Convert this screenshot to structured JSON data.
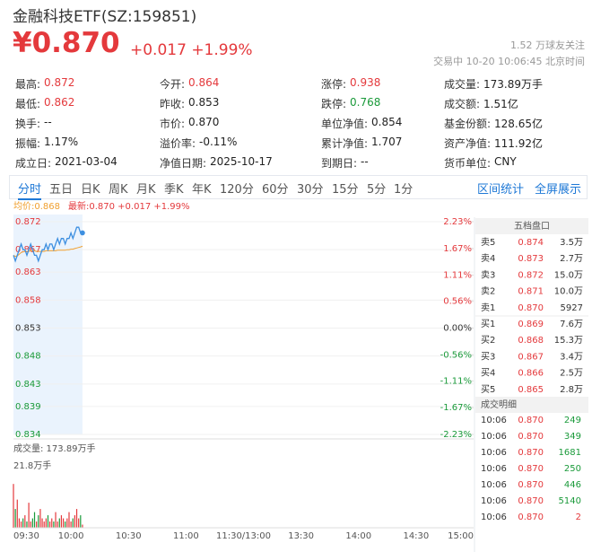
{
  "header": {
    "title": "金融科技ETF(SZ:159851)",
    "price": "¥0.870",
    "change": "+0.017 +1.99%",
    "followers": "1.52 万球友关注",
    "status": "交易中 10-20 10:06:45 北京时间",
    "color": "#e4393c"
  },
  "stats": [
    [
      {
        "label": "最高:",
        "value": "0.872",
        "color": "#e4393c"
      },
      {
        "label": "今开:",
        "value": "0.864",
        "color": "#e4393c"
      },
      {
        "label": "涨停:",
        "value": "0.938",
        "color": "#e4393c"
      },
      {
        "label": "成交量:",
        "value": "173.89万手",
        "color": "#222"
      }
    ],
    [
      {
        "label": "最低:",
        "value": "0.862",
        "color": "#e4393c"
      },
      {
        "label": "昨收:",
        "value": "0.853",
        "color": "#222"
      },
      {
        "label": "跌停:",
        "value": "0.768",
        "color": "#1a9a3a"
      },
      {
        "label": "成交额:",
        "value": "1.51亿",
        "color": "#222"
      }
    ],
    [
      {
        "label": "换手:",
        "value": "--",
        "color": "#222"
      },
      {
        "label": "市价:",
        "value": "0.870",
        "color": "#222"
      },
      {
        "label": "单位净值:",
        "value": "0.854",
        "color": "#222"
      },
      {
        "label": "基金份额:",
        "value": "128.65亿",
        "color": "#222"
      }
    ],
    [
      {
        "label": "振幅:",
        "value": "1.17%",
        "color": "#222"
      },
      {
        "label": "溢价率:",
        "value": "-0.11%",
        "color": "#222"
      },
      {
        "label": "累计净值:",
        "value": "1.707",
        "color": "#222"
      },
      {
        "label": "资产净值:",
        "value": "111.92亿",
        "color": "#222"
      }
    ],
    [
      {
        "label": "成立日:",
        "value": "2021-03-04",
        "color": "#222"
      },
      {
        "label": "净值日期:",
        "value": "2025-10-17",
        "color": "#222"
      },
      {
        "label": "到期日:",
        "value": "--",
        "color": "#222"
      },
      {
        "label": "货币单位:",
        "value": "CNY",
        "color": "#222"
      }
    ]
  ],
  "tabs": [
    "分时",
    "五日",
    "日K",
    "周K",
    "月K",
    "季K",
    "年K",
    "120分",
    "60分",
    "30分",
    "15分",
    "5分",
    "1分"
  ],
  "tab_actions": [
    "区间统计",
    "全屏展示"
  ],
  "intraday": {
    "avg_label": "均价:0.868",
    "last_label": "最新:0.870 +0.017 +1.99%",
    "ylim": [
      0.834,
      0.872
    ],
    "yticks": [
      0.872,
      0.867,
      0.863,
      0.858,
      0.853,
      0.848,
      0.843,
      0.839,
      0.834
    ],
    "y2lim": [
      -2.23,
      2.23
    ],
    "y2ticks": [
      {
        "value": 2.23,
        "label": "2.23%"
      },
      {
        "value": 1.67,
        "label": "1.67%"
      },
      {
        "value": 1.11,
        "label": "1.11%"
      },
      {
        "value": 0.56,
        "label": "0.56%"
      },
      {
        "value": 0,
        "label": "0.00%"
      },
      {
        "value": -0.56,
        "label": "-0.56%"
      },
      {
        "value": -1.11,
        "label": "-1.11%"
      },
      {
        "value": -1.67,
        "label": "-1.67%"
      },
      {
        "value": -2.23,
        "label": "-2.23%"
      }
    ],
    "price": [
      0.866,
      0.865,
      0.866,
      0.867,
      0.868,
      0.867,
      0.867,
      0.866,
      0.867,
      0.868,
      0.867,
      0.866,
      0.866,
      0.865,
      0.866,
      0.867,
      0.867,
      0.868,
      0.867,
      0.868,
      0.868,
      0.867,
      0.868,
      0.869,
      0.868,
      0.869,
      0.869,
      0.868,
      0.869,
      0.869,
      0.87,
      0.869,
      0.87,
      0.871,
      0.871,
      0.87,
      0.87
    ],
    "avg": [
      0.866,
      0.8658,
      0.8659,
      0.8662,
      0.8665,
      0.8666,
      0.8667,
      0.8667,
      0.8667,
      0.8668,
      0.8668,
      0.8668,
      0.8667,
      0.8667,
      0.8667,
      0.8667,
      0.8667,
      0.8668,
      0.8668,
      0.8668,
      0.8668,
      0.8668,
      0.8668,
      0.8669,
      0.8669,
      0.8669,
      0.8669,
      0.8669,
      0.867,
      0.867,
      0.8671,
      0.8671,
      0.8672,
      0.8673,
      0.8674,
      0.8675,
      0.8676
    ],
    "price_color": "#3d8fe0",
    "avg_color": "#f0a030",
    "volume_label": "成交量: 173.89万手",
    "volume_max_label": "21.8万手",
    "volume_ylim": [
      0,
      21.8
    ],
    "volume": [
      14,
      6,
      9,
      3,
      2,
      3,
      4,
      2,
      8,
      2,
      3,
      5,
      2,
      4,
      6,
      3,
      2,
      3,
      4,
      2,
      3,
      2,
      5,
      2,
      3,
      4,
      3,
      2,
      3,
      5,
      2,
      3,
      4,
      6,
      3,
      4,
      1
    ],
    "times": [
      "09:30",
      "10:00",
      "10:30",
      "11:00",
      "11:30/13:00",
      "13:30",
      "14:00",
      "14:30",
      "15:00"
    ]
  },
  "orderbook": {
    "title": "五档盘口",
    "rows": [
      [
        "卖5",
        "0.874",
        "3.5万"
      ],
      [
        "卖4",
        "0.873",
        "2.7万"
      ],
      [
        "卖3",
        "0.872",
        "15.0万"
      ],
      [
        "卖2",
        "0.871",
        "10.0万"
      ],
      [
        "卖1",
        "0.870",
        "5927"
      ],
      [
        "买1",
        "0.869",
        "7.6万"
      ],
      [
        "买2",
        "0.868",
        "15.3万"
      ],
      [
        "买3",
        "0.867",
        "3.4万"
      ],
      [
        "买4",
        "0.866",
        "2.5万"
      ],
      [
        "买5",
        "0.865",
        "2.8万"
      ]
    ]
  },
  "trades": {
    "title": "成交明细",
    "rows": [
      {
        "time": "10:06",
        "price": "0.870",
        "volume": "249",
        "color": "#1a9a3a"
      },
      {
        "time": "10:06",
        "price": "0.870",
        "volume": "349",
        "color": "#1a9a3a"
      },
      {
        "time": "10:06",
        "price": "0.870",
        "volume": "1681",
        "color": "#1a9a3a"
      },
      {
        "time": "10:06",
        "price": "0.870",
        "volume": "250",
        "color": "#1a9a3a"
      },
      {
        "time": "10:06",
        "price": "0.870",
        "volume": "446",
        "color": "#1a9a3a"
      },
      {
        "time": "10:06",
        "price": "0.870",
        "volume": "5140",
        "color": "#1a9a3a"
      },
      {
        "time": "10:06",
        "price": "0.870",
        "volume": "2",
        "color": "#e4393c"
      }
    ]
  }
}
